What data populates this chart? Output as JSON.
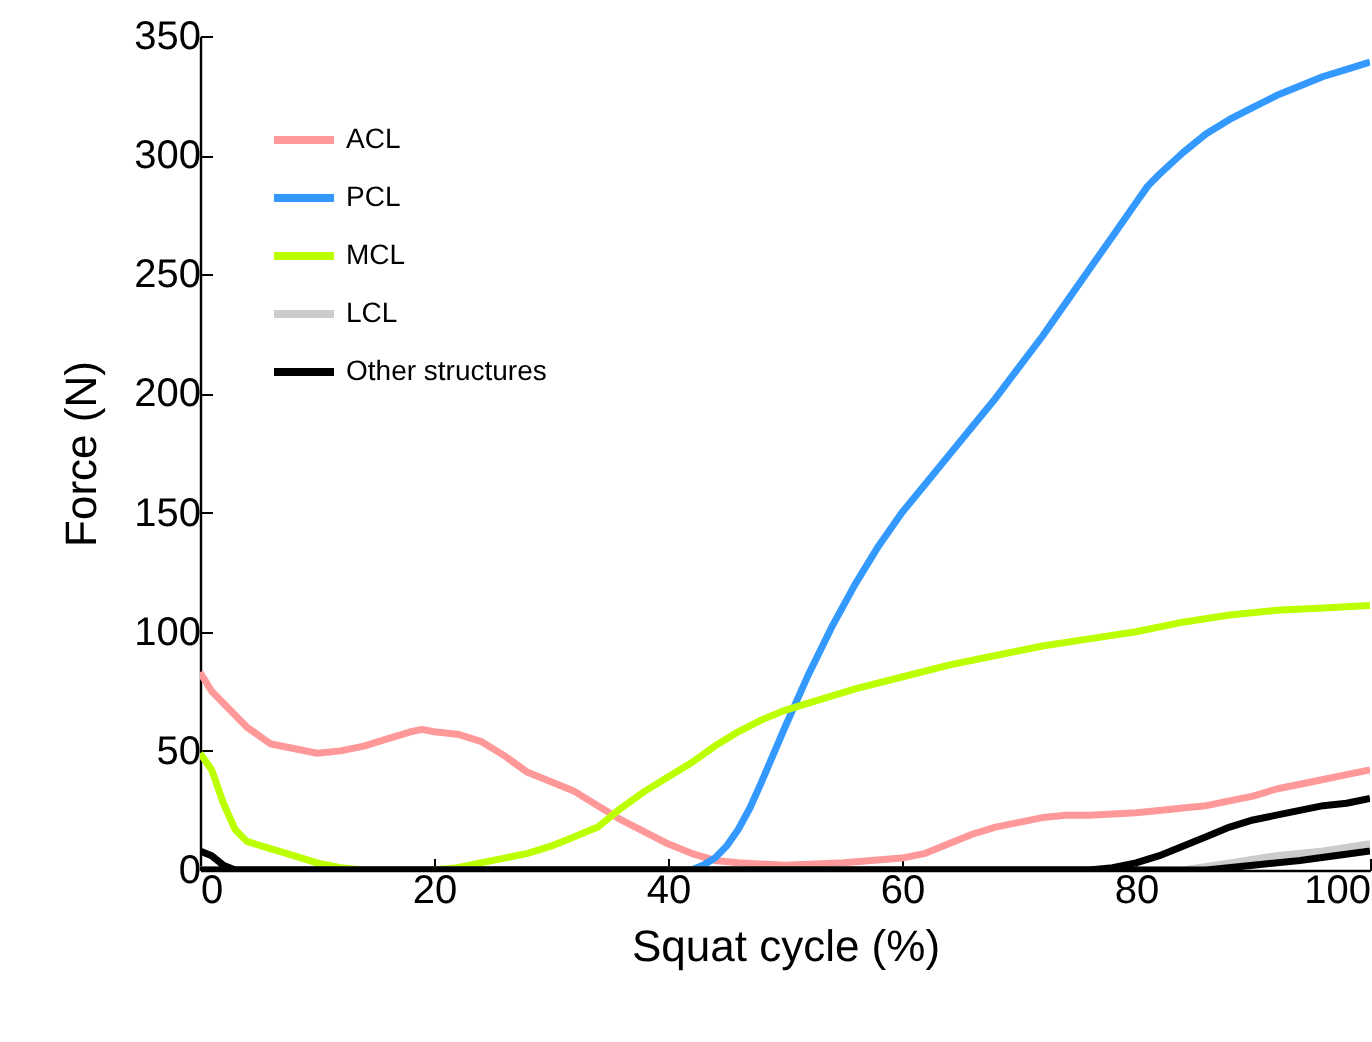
{
  "chart_data": {
    "type": "line",
    "xlabel": "Squat cycle (%)",
    "ylabel": "Force (N)",
    "xlim": [
      0,
      100
    ],
    "xticks": [
      0,
      20,
      40,
      60,
      80,
      100
    ],
    "ylim": [
      0,
      350
    ],
    "yticks": [
      0,
      50,
      100,
      150,
      200,
      250,
      300,
      350
    ],
    "grid": false,
    "legend": "top left",
    "marker": "none",
    "line_style": "solid",
    "series": [
      {
        "name": "ACL",
        "color": "#ff9999",
        "x": [
          0,
          1,
          2,
          4,
          6,
          8,
          10,
          12,
          14,
          16,
          18,
          19,
          20,
          22,
          24,
          26,
          28,
          30,
          32,
          34,
          36,
          38,
          40,
          42,
          44,
          46,
          50,
          55,
          60,
          62,
          64,
          66,
          68,
          70,
          72,
          74,
          76,
          80,
          82,
          84,
          86,
          88,
          90,
          92,
          94,
          96,
          98,
          100
        ],
        "values": [
          83,
          75,
          70,
          60,
          53,
          51,
          49,
          50,
          52,
          55,
          58,
          59,
          58,
          57,
          54,
          48,
          41,
          37,
          33,
          27,
          21,
          16,
          11,
          7,
          4,
          3,
          2,
          3,
          5,
          7,
          11,
          15,
          18,
          20,
          22,
          23,
          23,
          24,
          25,
          26,
          27,
          29,
          31,
          34,
          36,
          38,
          40,
          42
        ]
      },
      {
        "name": "PCL",
        "color": "#3399ff",
        "x": [
          0,
          42,
          43,
          44,
          45,
          46,
          47,
          48,
          50,
          52,
          54,
          56,
          58,
          60,
          62,
          64,
          66,
          68,
          70,
          72,
          74,
          76,
          78,
          80,
          81,
          82,
          84,
          86,
          88,
          90,
          92,
          94,
          96,
          98,
          100
        ],
        "values": [
          0,
          0,
          2,
          5,
          10,
          17,
          26,
          37,
          60,
          82,
          102,
          120,
          136,
          150,
          162,
          174,
          186,
          198,
          211,
          224,
          238,
          252,
          266,
          280,
          287,
          292,
          301,
          309,
          315,
          320,
          325,
          329,
          333,
          336,
          339
        ]
      },
      {
        "name": "MCL",
        "color": "#bbff00",
        "x": [
          0,
          1,
          2,
          3,
          4,
          6,
          8,
          10,
          12,
          14,
          20,
          22,
          24,
          26,
          28,
          30,
          32,
          34,
          36,
          38,
          40,
          42,
          44,
          46,
          48,
          50,
          52,
          56,
          60,
          64,
          68,
          72,
          76,
          80,
          84,
          88,
          92,
          96,
          100
        ],
        "values": [
          49,
          42,
          28,
          17,
          12,
          9,
          6,
          3,
          1,
          0,
          0,
          1,
          3,
          5,
          7,
          10,
          14,
          18,
          26,
          33,
          39,
          45,
          52,
          58,
          63,
          67,
          70,
          76,
          81,
          86,
          90,
          94,
          97,
          100,
          104,
          107,
          109,
          110,
          111
        ]
      },
      {
        "name": "LCL",
        "color": "#cccccc",
        "x": [
          0,
          84,
          88,
          92,
          96,
          100
        ],
        "values": [
          0,
          0,
          3,
          6,
          8,
          11
        ]
      },
      {
        "name": "Other structures",
        "color": "#000000",
        "x": [
          0,
          1,
          2,
          3,
          76,
          78,
          80,
          82,
          84,
          86,
          88,
          90,
          92,
          94,
          96,
          98,
          100
        ],
        "values": [
          8,
          6,
          2,
          0,
          0,
          1,
          3,
          6,
          10,
          14,
          18,
          21,
          23,
          25,
          27,
          28,
          30
        ]
      },
      {
        "color": "#000000",
        "x": [
          0,
          86,
          90,
          94,
          97,
          100
        ],
        "values": [
          0,
          0,
          2,
          4,
          6,
          8
        ]
      }
    ]
  }
}
